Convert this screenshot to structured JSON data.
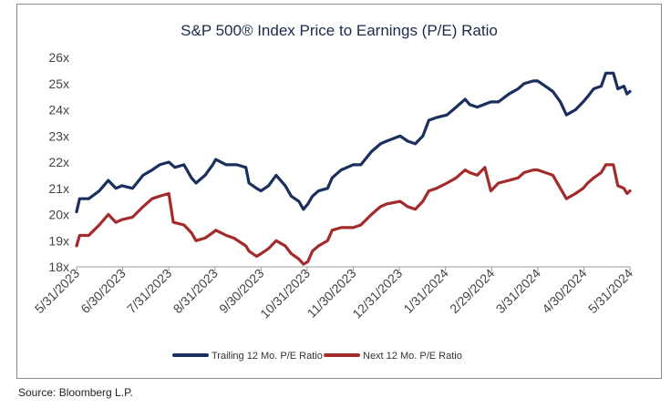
{
  "source": "Source: Bloomberg L.P.",
  "chart_data": {
    "type": "line",
    "title": "S&P 500® Index Price to Earnings (P/E) Ratio",
    "xlabel": "",
    "ylabel": "",
    "ylim": [
      18,
      26
    ],
    "y_ticks": [
      "18x",
      "19x",
      "20x",
      "21x",
      "22x",
      "23x",
      "24x",
      "25x",
      "26x"
    ],
    "x_ticks": [
      "5/31/2023",
      "6/30/2023",
      "7/31/2023",
      "8/31/2023",
      "9/30/2023",
      "10/31/2023",
      "11/30/2023",
      "12/31/2023",
      "1/31/2024",
      "2/29/2024",
      "3/31/2024",
      "4/30/2024",
      "5/31/2024"
    ],
    "grid": false,
    "legend": "bottom",
    "x_domain": [
      "2023-05-31",
      "2024-05-31"
    ],
    "series": [
      {
        "name": "Trailing 12 Mo. P/E Ratio",
        "color": "#1b2f5e",
        "points": [
          [
            "2023-05-31",
            20.1
          ],
          [
            "2023-06-02",
            20.6
          ],
          [
            "2023-06-08",
            20.6
          ],
          [
            "2023-06-15",
            20.9
          ],
          [
            "2023-06-21",
            21.3
          ],
          [
            "2023-06-26",
            21.0
          ],
          [
            "2023-06-30",
            21.1
          ],
          [
            "2023-07-07",
            21.0
          ],
          [
            "2023-07-14",
            21.5
          ],
          [
            "2023-07-20",
            21.7
          ],
          [
            "2023-07-25",
            21.9
          ],
          [
            "2023-07-31",
            22.0
          ],
          [
            "2023-08-04",
            21.8
          ],
          [
            "2023-08-10",
            21.9
          ],
          [
            "2023-08-15",
            21.4
          ],
          [
            "2023-08-18",
            21.2
          ],
          [
            "2023-08-24",
            21.5
          ],
          [
            "2023-08-29",
            21.9
          ],
          [
            "2023-08-31",
            22.1
          ],
          [
            "2023-09-07",
            21.9
          ],
          [
            "2023-09-14",
            21.9
          ],
          [
            "2023-09-20",
            21.8
          ],
          [
            "2023-09-22",
            21.2
          ],
          [
            "2023-09-27",
            21.0
          ],
          [
            "2023-09-30",
            20.9
          ],
          [
            "2023-10-05",
            21.1
          ],
          [
            "2023-10-10",
            21.5
          ],
          [
            "2023-10-16",
            21.1
          ],
          [
            "2023-10-20",
            20.7
          ],
          [
            "2023-10-25",
            20.5
          ],
          [
            "2023-10-28",
            20.2
          ],
          [
            "2023-10-31",
            20.4
          ],
          [
            "2023-11-03",
            20.7
          ],
          [
            "2023-11-07",
            20.9
          ],
          [
            "2023-11-13",
            21.0
          ],
          [
            "2023-11-16",
            21.4
          ],
          [
            "2023-11-22",
            21.7
          ],
          [
            "2023-11-30",
            21.9
          ],
          [
            "2023-12-05",
            21.9
          ],
          [
            "2023-12-12",
            22.4
          ],
          [
            "2023-12-18",
            22.7
          ],
          [
            "2023-12-22",
            22.8
          ],
          [
            "2023-12-31",
            23.0
          ],
          [
            "2024-01-05",
            22.8
          ],
          [
            "2024-01-10",
            22.7
          ],
          [
            "2024-01-15",
            23.0
          ],
          [
            "2024-01-19",
            23.6
          ],
          [
            "2024-01-24",
            23.7
          ],
          [
            "2024-01-31",
            23.8
          ],
          [
            "2024-02-06",
            24.1
          ],
          [
            "2024-02-12",
            24.4
          ],
          [
            "2024-02-15",
            24.2
          ],
          [
            "2024-02-20",
            24.1
          ],
          [
            "2024-02-29",
            24.3
          ],
          [
            "2024-03-05",
            24.3
          ],
          [
            "2024-03-12",
            24.6
          ],
          [
            "2024-03-18",
            24.8
          ],
          [
            "2024-03-22",
            25.0
          ],
          [
            "2024-03-28",
            25.1
          ],
          [
            "2024-03-31",
            25.1
          ],
          [
            "2024-04-05",
            24.9
          ],
          [
            "2024-04-10",
            24.7
          ],
          [
            "2024-04-15",
            24.3
          ],
          [
            "2024-04-19",
            23.8
          ],
          [
            "2024-04-25",
            24.0
          ],
          [
            "2024-04-30",
            24.3
          ],
          [
            "2024-05-03",
            24.5
          ],
          [
            "2024-05-07",
            24.8
          ],
          [
            "2024-05-12",
            24.9
          ],
          [
            "2024-05-15",
            25.4
          ],
          [
            "2024-05-20",
            25.4
          ],
          [
            "2024-05-23",
            24.8
          ],
          [
            "2024-05-27",
            24.9
          ],
          [
            "2024-05-29",
            24.6
          ],
          [
            "2024-05-31",
            24.7
          ]
        ]
      },
      {
        "name": "Next 12 Mo. P/E Ratio",
        "color": "#a32b2b",
        "points": [
          [
            "2023-05-31",
            18.8
          ],
          [
            "2023-06-02",
            19.2
          ],
          [
            "2023-06-08",
            19.2
          ],
          [
            "2023-06-15",
            19.6
          ],
          [
            "2023-06-21",
            20.0
          ],
          [
            "2023-06-26",
            19.7
          ],
          [
            "2023-06-30",
            19.8
          ],
          [
            "2023-07-07",
            19.9
          ],
          [
            "2023-07-14",
            20.3
          ],
          [
            "2023-07-20",
            20.6
          ],
          [
            "2023-07-25",
            20.7
          ],
          [
            "2023-07-31",
            20.8
          ],
          [
            "2023-08-03",
            19.7
          ],
          [
            "2023-08-10",
            19.6
          ],
          [
            "2023-08-15",
            19.3
          ],
          [
            "2023-08-18",
            19.0
          ],
          [
            "2023-08-24",
            19.1
          ],
          [
            "2023-08-29",
            19.3
          ],
          [
            "2023-08-31",
            19.4
          ],
          [
            "2023-09-07",
            19.2
          ],
          [
            "2023-09-12",
            19.1
          ],
          [
            "2023-09-20",
            18.8
          ],
          [
            "2023-09-22",
            18.6
          ],
          [
            "2023-09-27",
            18.4
          ],
          [
            "2023-09-30",
            18.5
          ],
          [
            "2023-10-05",
            18.7
          ],
          [
            "2023-10-10",
            19.0
          ],
          [
            "2023-10-16",
            18.8
          ],
          [
            "2023-10-20",
            18.5
          ],
          [
            "2023-10-25",
            18.3
          ],
          [
            "2023-10-28",
            18.1
          ],
          [
            "2023-10-31",
            18.2
          ],
          [
            "2023-11-03",
            18.6
          ],
          [
            "2023-11-07",
            18.8
          ],
          [
            "2023-11-13",
            19.0
          ],
          [
            "2023-11-16",
            19.4
          ],
          [
            "2023-11-22",
            19.5
          ],
          [
            "2023-11-30",
            19.5
          ],
          [
            "2023-12-05",
            19.6
          ],
          [
            "2023-12-12",
            20.0
          ],
          [
            "2023-12-18",
            20.3
          ],
          [
            "2023-12-22",
            20.4
          ],
          [
            "2023-12-31",
            20.5
          ],
          [
            "2024-01-05",
            20.3
          ],
          [
            "2024-01-10",
            20.2
          ],
          [
            "2024-01-15",
            20.5
          ],
          [
            "2024-01-19",
            20.9
          ],
          [
            "2024-01-24",
            21.0
          ],
          [
            "2024-01-31",
            21.2
          ],
          [
            "2024-02-06",
            21.4
          ],
          [
            "2024-02-12",
            21.7
          ],
          [
            "2024-02-15",
            21.6
          ],
          [
            "2024-02-20",
            21.5
          ],
          [
            "2024-02-25",
            21.8
          ],
          [
            "2024-02-29",
            20.9
          ],
          [
            "2024-03-05",
            21.2
          ],
          [
            "2024-03-12",
            21.3
          ],
          [
            "2024-03-18",
            21.4
          ],
          [
            "2024-03-22",
            21.6
          ],
          [
            "2024-03-28",
            21.7
          ],
          [
            "2024-03-31",
            21.7
          ],
          [
            "2024-04-05",
            21.6
          ],
          [
            "2024-04-10",
            21.5
          ],
          [
            "2024-04-15",
            21.0
          ],
          [
            "2024-04-19",
            20.6
          ],
          [
            "2024-04-25",
            20.8
          ],
          [
            "2024-04-30",
            21.0
          ],
          [
            "2024-05-03",
            21.2
          ],
          [
            "2024-05-07",
            21.4
          ],
          [
            "2024-05-12",
            21.6
          ],
          [
            "2024-05-15",
            21.9
          ],
          [
            "2024-05-20",
            21.9
          ],
          [
            "2024-05-23",
            21.1
          ],
          [
            "2024-05-27",
            21.0
          ],
          [
            "2024-05-29",
            20.8
          ],
          [
            "2024-05-31",
            20.9
          ]
        ]
      }
    ]
  }
}
